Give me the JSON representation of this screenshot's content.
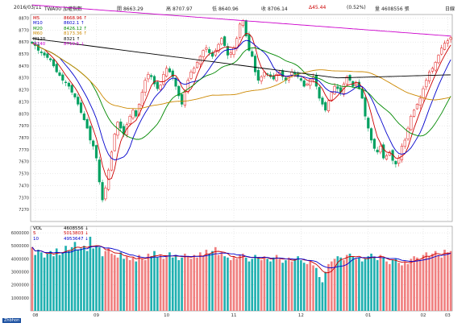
{
  "header": {
    "date": "2016/03/11",
    "symbol": "TWA00 加權指數",
    "open_label": "開",
    "open": "8663.29",
    "high_label": "高",
    "high": "8707.97",
    "low_label": "低",
    "low": "8640.96",
    "close_label": "收",
    "close": "8706.14",
    "change": "Δ45.44",
    "change_pct": "(0.52%)",
    "volume_label": "量",
    "volume": "4608556 張",
    "period": "日線"
  },
  "ma_legend": [
    {
      "name": "M5",
      "value": "8668.96 ↑",
      "color": "#cc0000"
    },
    {
      "name": "M10",
      "value": "8602.1 ↑",
      "color": "#0000cc"
    },
    {
      "name": "M20",
      "value": "8426.12 ↑",
      "color": "#008800"
    },
    {
      "name": "M60",
      "value": "8173.36 ↑",
      "color": "#cc8800"
    },
    {
      "name": "M120",
      "value": "8321 ↑",
      "color": "#000000"
    },
    {
      "name": "M240",
      "value": "8719.5 ↓",
      "color": "#cc00cc"
    }
  ],
  "vol_legend": [
    {
      "name": "VOL",
      "value": "4608556 ↓",
      "color": "#000000"
    },
    {
      "name": "5",
      "value": "5013803 ↓",
      "color": "#cc0000"
    },
    {
      "name": "10",
      "value": "4953647 ↓",
      "color": "#0000cc"
    }
  ],
  "colors": {
    "up": "#e01010",
    "down": "#00a060",
    "vol_up": "#f08080",
    "vol_down": "#20b0b0",
    "grid": "#cccccc"
  },
  "x_ticks": [
    "08",
    "09",
    "10",
    "11",
    "12",
    "01",
    "02",
    "03"
  ],
  "y_ticks_price": [
    "8870",
    "8770",
    "8670",
    "8570",
    "8470",
    "8370",
    "8270",
    "8170",
    "8070",
    "7970",
    "7870",
    "7770",
    "7670",
    "7570",
    "7470",
    "7370",
    "7270"
  ],
  "y_ticks_vol": [
    "6000000",
    "5000000",
    "4000000",
    "3000000",
    "2000000",
    "1000000"
  ],
  "bottom_label": "Zhbhon",
  "chart_data": [
    {
      "type": "candlestick",
      "title": "TWA00 加權指數",
      "ylim": [
        7170,
        8900
      ],
      "y_ticks": [
        8870,
        8770,
        8670,
        8570,
        8470,
        8370,
        8270,
        8170,
        8070,
        7970,
        7870,
        7770,
        7670,
        7570,
        7470,
        7370,
        7270
      ],
      "close": [
        8660,
        8640,
        8600,
        8580,
        8560,
        8540,
        8520,
        8470,
        8420,
        8390,
        8350,
        8330,
        8300,
        8250,
        8210,
        8150,
        8080,
        8020,
        7950,
        7850,
        7800,
        7700,
        7500,
        7350,
        7450,
        7600,
        7750,
        7900,
        8000,
        7950,
        7900,
        7980,
        8050,
        8100,
        8050,
        8150,
        8250,
        8350,
        8400,
        8380,
        8320,
        8280,
        8310,
        8400,
        8450,
        8420,
        8380,
        8300,
        8220,
        8150,
        8250,
        8350,
        8420,
        8450,
        8500,
        8550,
        8600,
        8620,
        8580,
        8550,
        8600,
        8650,
        8700,
        8640,
        8560,
        8580,
        8620,
        8700,
        8820,
        8850,
        8720,
        8600,
        8550,
        8420,
        8350,
        8380,
        8420,
        8400,
        8380,
        8360,
        8400,
        8420,
        8380,
        8350,
        8380,
        8420,
        8400,
        8380,
        8350,
        8300,
        8320,
        8360,
        8380,
        8300,
        8200,
        8150,
        8100,
        8180,
        8250,
        8300,
        8280,
        8250,
        8320,
        8380,
        8350,
        8300,
        8320,
        8280,
        8200,
        8050,
        7950,
        7850,
        7780,
        7750,
        7800,
        7700,
        7720,
        7750,
        7680,
        7650,
        7700,
        7800,
        7850,
        7950,
        8050,
        8100,
        8150,
        8200,
        8280,
        8350,
        8420,
        8450,
        8500,
        8560,
        8620,
        8660,
        8680,
        8706
      ]
    },
    {
      "type": "bar",
      "title": "VOL",
      "ylim": [
        0,
        6500000
      ],
      "y_ticks": [
        6000000,
        5000000,
        4000000,
        3000000,
        2000000,
        1000000
      ],
      "values": [
        4900000,
        4300000,
        4700000,
        4500000,
        4100000,
        4400000,
        4600000,
        4200000,
        4800000,
        4300000,
        4500000,
        5000000,
        4600000,
        4900000,
        5300000,
        4700000,
        4800000,
        5000000,
        4600000,
        5700000,
        4800000,
        5000000,
        4900000,
        4200000,
        4600000,
        4800000,
        4400000,
        4300000,
        4100000,
        4500000,
        4000000,
        4200000,
        3900000,
        4100000,
        3800000,
        4300000,
        4000000,
        3900000,
        4400000,
        4200000,
        4600000,
        4100000,
        4300000,
        4000000,
        4200000,
        4500000,
        4100000,
        4300000,
        3900000,
        4100000,
        4400000,
        4200000,
        4000000,
        4300000,
        4100000,
        4500000,
        4200000,
        4700000,
        4400000,
        4600000,
        4900000,
        4300000,
        4500000,
        4200000,
        4100000,
        3900000,
        4200000,
        4000000,
        4300000,
        4400000,
        4100000,
        3800000,
        4000000,
        4300000,
        4100000,
        3900000,
        4200000,
        4000000,
        3800000,
        4100000,
        4300000,
        4000000,
        3700000,
        3900000,
        4100000,
        3800000,
        4000000,
        4200000,
        3900000,
        3700000,
        3600000,
        3800000,
        3500000,
        3300000,
        2600000,
        2200000,
        3000000,
        3600000,
        3800000,
        4000000,
        4200000,
        4100000,
        3900000,
        4300000,
        4400000,
        4200000,
        4000000,
        4100000,
        3800000,
        4000000,
        4200000,
        4400000,
        4100000,
        3900000,
        4300000,
        4100000,
        3800000,
        3600000,
        3900000,
        4000000,
        3700000,
        3500000,
        3800000,
        3600000,
        4000000,
        4200000,
        4100000,
        3900000,
        4300000,
        4500000,
        4200000,
        4400000,
        4600000,
        4300000,
        4100000,
        4700000,
        4500000,
        4600000
      ]
    }
  ]
}
